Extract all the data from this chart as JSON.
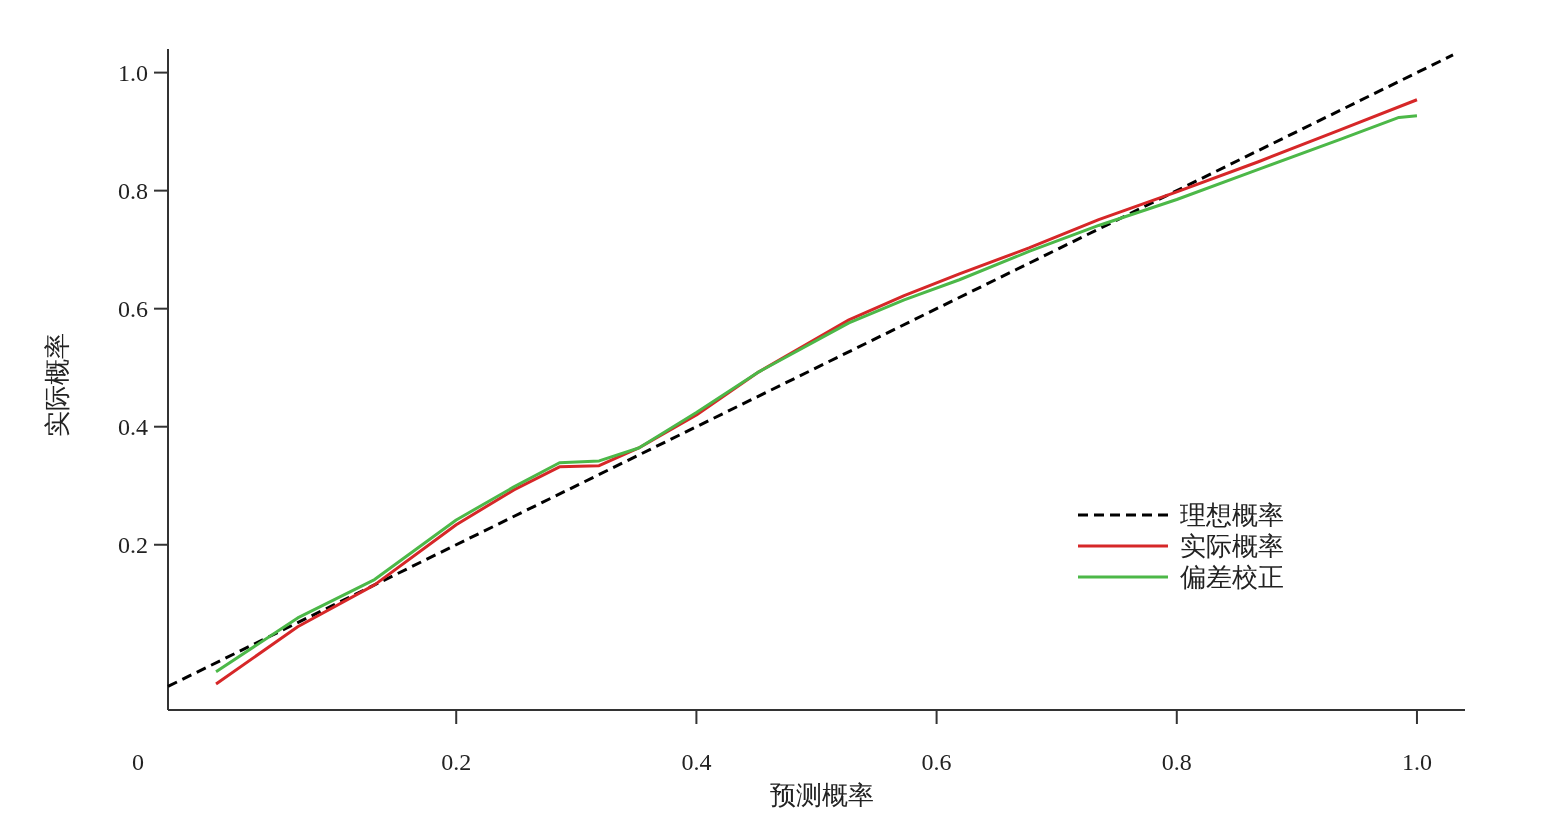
{
  "chart_data": {
    "type": "line",
    "xlabel": "预测概率",
    "ylabel": "实际概率",
    "xlim": [
      -0.04,
      1.04
    ],
    "ylim": [
      -0.08,
      1.04
    ],
    "xticks": [
      0.2,
      0.4,
      0.6,
      0.8,
      {
        "value": 1.0,
        "label": "1.0"
      }
    ],
    "yticks": [
      0.2,
      0.4,
      0.6,
      0.8,
      {
        "value": 1.0,
        "label": "1.0"
      }
    ],
    "annotations": [
      "0"
    ],
    "legend": "bottom right",
    "grid": false,
    "marker": "none",
    "series": [
      {
        "name": "理想概率",
        "color": "#000000",
        "line_style": "dashed",
        "x": [
          -0.04,
          1.03
        ],
        "values": [
          -0.04,
          1.03
        ]
      },
      {
        "name": "实际概率",
        "color": "#d62728",
        "line_style": "solid",
        "x": [
          0.0,
          0.068,
          0.132,
          0.2,
          0.248,
          0.286,
          0.319,
          0.352,
          0.4,
          0.452,
          0.527,
          0.573,
          0.619,
          0.677,
          0.735,
          0.8,
          0.868,
          0.935,
          1.0
        ],
        "values": [
          -0.036,
          0.061,
          0.132,
          0.234,
          0.293,
          0.332,
          0.334,
          0.364,
          0.42,
          0.493,
          0.581,
          0.622,
          0.659,
          0.703,
          0.751,
          0.798,
          0.849,
          0.902,
          0.954
        ]
      },
      {
        "name": "偏差校正",
        "color": "#4cb848",
        "line_style": "solid",
        "x": [
          0.0,
          0.068,
          0.132,
          0.2,
          0.248,
          0.286,
          0.319,
          0.352,
          0.4,
          0.452,
          0.527,
          0.573,
          0.619,
          0.677,
          0.735,
          0.8,
          0.868,
          0.935,
          0.985,
          1.0
        ],
        "values": [
          -0.015,
          0.076,
          0.141,
          0.242,
          0.298,
          0.339,
          0.342,
          0.364,
          0.424,
          0.493,
          0.576,
          0.615,
          0.649,
          0.697,
          0.741,
          0.785,
          0.836,
          0.886,
          0.924,
          0.927
        ]
      }
    ]
  }
}
